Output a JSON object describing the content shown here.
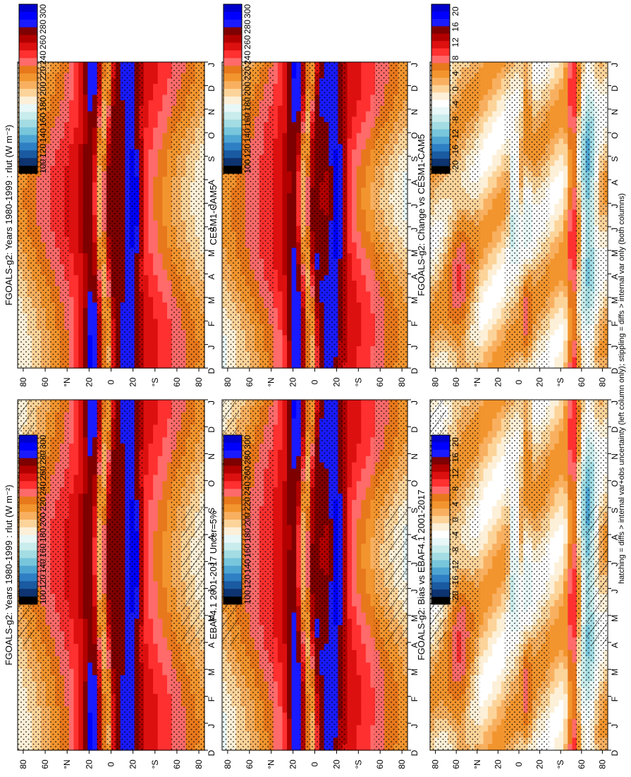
{
  "footer_note": "hatching = diffs > internal var+obs uncertainty (left column only); stippling = diffs > internal var only (both columns)",
  "months": [
    "D",
    "J",
    "F",
    "M",
    "A",
    "M",
    "J",
    "J",
    "A",
    "S",
    "O",
    "N",
    "D",
    "J"
  ],
  "lat_ticks": [
    "80",
    "60",
    "°N",
    "20",
    "0",
    "20",
    "°S",
    "60",
    "80"
  ],
  "chart_data": [
    {
      "type": "heatmap",
      "title": "FGOALS-g2: Years 1980-1999 : rlut (W m⁻²)",
      "field": "abs_model",
      "colorbar": {
        "ticks": [
          "300",
          "280",
          "260",
          "240",
          "220",
          "200",
          "180",
          "160",
          "140",
          "120",
          "100"
        ]
      },
      "hatching": true,
      "stippling": true
    },
    {
      "type": "heatmap",
      "title": "EBAF4.1 2001-2017 Uncer=5%",
      "field": "abs_obs",
      "colorbar": {
        "ticks": [
          "300",
          "280",
          "260",
          "240",
          "220",
          "200",
          "180",
          "160",
          "140",
          "120",
          "100"
        ]
      },
      "hatching": true,
      "stippling": true
    },
    {
      "type": "heatmap",
      "title": "FGOALS-g2: Bias vs EBAF4.1 2001-2017",
      "field": "bias",
      "colorbar": {
        "ticks": [
          "20",
          "16",
          "12",
          "8",
          "4",
          "0",
          "-4",
          "-8",
          "-12",
          "-16",
          "-20"
        ]
      },
      "hatching": true,
      "stippling": true
    },
    {
      "type": "heatmap",
      "title": "FGOALS-g2: Years 1980-1999 : rlut (W m⁻²)",
      "field": "abs_model",
      "colorbar": {
        "ticks": [
          "300",
          "280",
          "260",
          "240",
          "220",
          "200",
          "180",
          "160",
          "140",
          "120",
          "100"
        ]
      },
      "hatching": false,
      "stippling": true
    },
    {
      "type": "heatmap",
      "title": "CESM1-CAM5",
      "field": "abs_obs",
      "colorbar": {
        "ticks": [
          "300",
          "280",
          "260",
          "240",
          "220",
          "200",
          "180",
          "160",
          "140",
          "120",
          "100"
        ]
      },
      "hatching": false,
      "stippling": true
    },
    {
      "type": "heatmap",
      "title": "FGOALS-g2: Change vs CESM1-CAM5",
      "field": "change",
      "colorbar": {
        "ticks": [
          "20",
          "16",
          "12",
          "8",
          "4",
          "0",
          "-4",
          "-8",
          "-12",
          "-16",
          "-20"
        ]
      },
      "hatching": false,
      "stippling": true
    }
  ],
  "colors": {
    "abs_scale": [
      "#0000cd",
      "#0000ff",
      "#1a1aff",
      "#7f0000",
      "#b20000",
      "#dd1010",
      "#ff3030",
      "#ff6a6a",
      "#e8781c",
      "#f2952e",
      "#f8b060",
      "#fcd49a",
      "#fdf0d8",
      "#e8f7f7",
      "#c9ecec",
      "#a3dde3",
      "#78c6dc",
      "#4ea5d2",
      "#2e7fc3",
      "#1a5aa0",
      "#0d3370",
      "#000000"
    ],
    "diff_scale": [
      "#0000cd",
      "#0000ff",
      "#1a1aff",
      "#7f0000",
      "#b20000",
      "#dd1010",
      "#ff3030",
      "#ff6a6a",
      "#e8781c",
      "#f2952e",
      "#f8b060",
      "#fcd49a",
      "#fdf0d8",
      "#ffffff",
      "#e8f7f7",
      "#c9ecec",
      "#a3dde3",
      "#78c6dc",
      "#4ea5d2",
      "#2e7fc3",
      "#1a5aa0",
      "#0d3370",
      "#000000"
    ]
  }
}
